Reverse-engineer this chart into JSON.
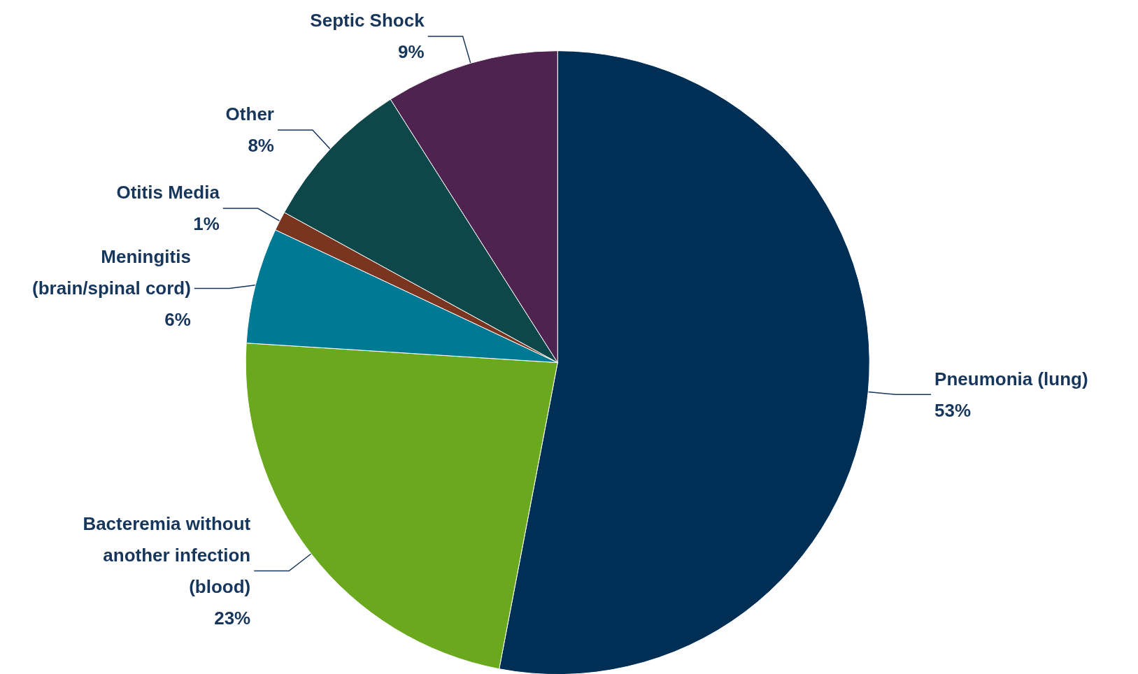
{
  "chart_data": {
    "type": "pie",
    "categories": [
      "Pneumonia (lung)",
      "Bacteremia without\nanother infection\n(blood)",
      "Meningitis\n(brain/spinal cord)",
      "Otitis Media",
      "Other",
      "Septic Shock"
    ],
    "values": [
      53,
      23,
      6,
      1,
      8,
      9
    ],
    "colors": [
      "#002f56",
      "#6aa81e",
      "#007a94",
      "#7a3520",
      "#0e474a",
      "#4f2350"
    ],
    "value_labels": [
      "53%",
      "23%",
      "6%",
      "1%",
      "8%",
      "9%"
    ]
  }
}
